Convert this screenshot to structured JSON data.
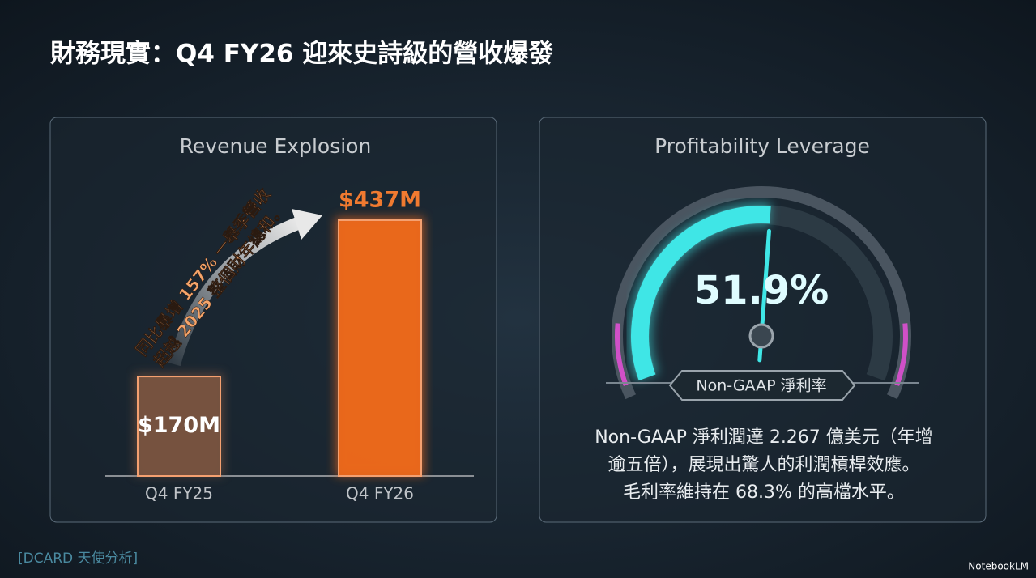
{
  "title": "財務現實：Q4 FY26 迎來史詩級的營收爆發",
  "footer": "[DCARD 天使分析]",
  "watermark": "NotebookLM",
  "chart_data": [
    {
      "type": "bar",
      "title": "Revenue Explosion",
      "categories": [
        "Q4 FY25",
        "Q4 FY26"
      ],
      "values": [
        170,
        437
      ],
      "value_labels": [
        "$170M",
        "$437M"
      ],
      "colors": [
        "#7a5440",
        "#f26a1b"
      ],
      "annotation": [
        "同比暴增 157% 一舉季營收",
        "超越 2025 整個財年總和。"
      ]
    },
    {
      "type": "gauge",
      "title": "Profitability Leverage",
      "value": 51.9,
      "value_label": "51.9%",
      "ylim": [
        0,
        100
      ],
      "label": "Non-GAAP 淨利率",
      "color": "#3fe6e6",
      "description": [
        "Non-GAAP 淨利潤達 2.267 億美元（年增",
        "逾五倍），展現出驚人的利潤槓桿效應。",
        "毛利率維持在 68.3% 的高檔水平。"
      ]
    }
  ]
}
